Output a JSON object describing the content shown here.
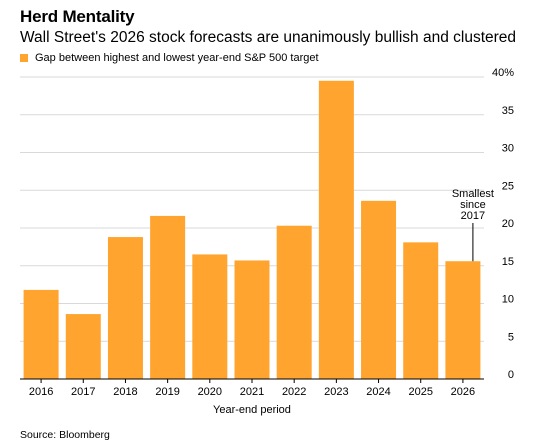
{
  "chart_data": {
    "type": "bar",
    "title": "Herd Mentality",
    "subtitle": "Wall Street's 2026 stock forecasts are unanimously bullish and clustered",
    "categories": [
      "2016",
      "2017",
      "2018",
      "2019",
      "2020",
      "2021",
      "2022",
      "2023",
      "2024",
      "2025",
      "2026"
    ],
    "series": [
      {
        "name": "Gap between highest and lowest year-end S&P 500 target",
        "values": [
          11.8,
          8.6,
          18.8,
          21.6,
          16.5,
          15.7,
          20.3,
          39.5,
          23.6,
          18.1,
          15.6
        ]
      }
    ],
    "xlabel": "Year-end period",
    "ylabel": "",
    "ylim": [
      0,
      40
    ],
    "yticks": [
      0,
      5,
      10,
      15,
      20,
      25,
      30,
      35,
      40
    ],
    "ytick_labels": [
      "0",
      "5",
      "10",
      "15",
      "20",
      "25",
      "30",
      "35",
      "40%"
    ],
    "bar_color": "#FFA42E",
    "grid": true,
    "legend_position": "top-left",
    "annotation": {
      "category": "2026",
      "lines": [
        "Smallest",
        "since",
        "2017"
      ]
    },
    "source": "Source: Bloomberg"
  }
}
